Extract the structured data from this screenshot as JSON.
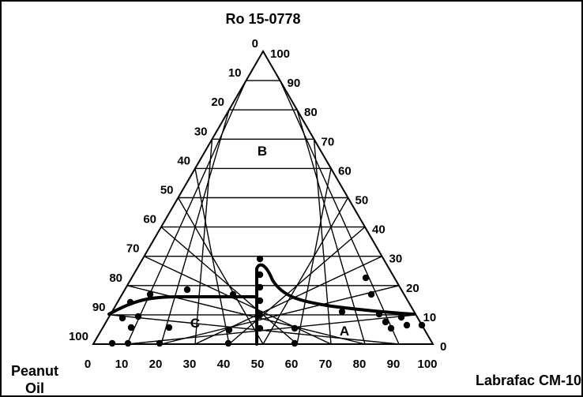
{
  "top_label": "Ro 15-0778",
  "left_label_line1": "Peanut",
  "left_label_line2": "Oil",
  "right_label": "Labrafac CM-10",
  "region_labels": {
    "a": "A",
    "b": "B",
    "c": "C"
  },
  "left_ticks": [
    "0",
    "10",
    "20",
    "30",
    "40",
    "50",
    "60",
    "70",
    "80",
    "90",
    "100"
  ],
  "right_ticks": [
    "100",
    "90",
    "80",
    "70",
    "60",
    "50",
    "40",
    "30",
    "20",
    "10",
    "0"
  ],
  "bottom_ticks": [
    "0",
    "10",
    "20",
    "30",
    "40",
    "50",
    "60",
    "70",
    "80",
    "90",
    "100"
  ],
  "colors": {
    "line": "#000000",
    "background": "#ffffff"
  }
}
